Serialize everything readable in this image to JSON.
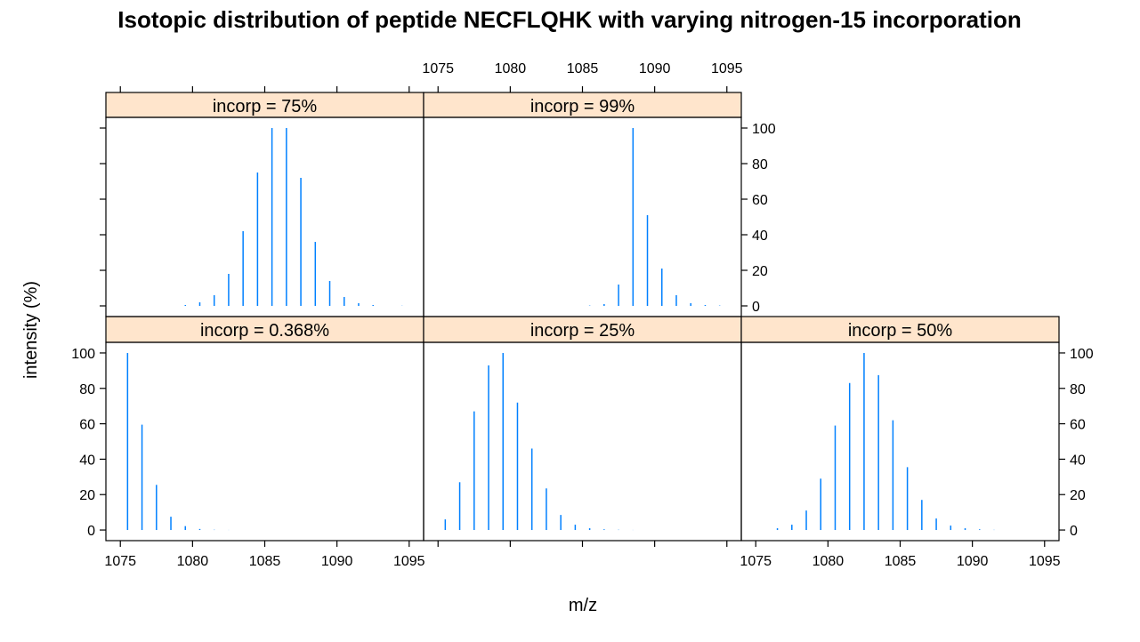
{
  "chart_data": {
    "type": "bar",
    "title": "Isotopic distribution of peptide NECFLQHK with varying nitrogen-15 incorporation",
    "xlabel": "m/z",
    "ylabel": "intensity (%)",
    "xlim": [
      1074,
      1096
    ],
    "ylim": [
      -6,
      106
    ],
    "x_ticks": [
      1075,
      1080,
      1085,
      1090,
      1095
    ],
    "y_ticks": [
      0,
      20,
      40,
      60,
      80,
      100
    ],
    "colors": {
      "bar": "#0080ff",
      "strip": "#ffe5cc",
      "axis": "#000000"
    },
    "panels": [
      {
        "label": "incorp = 0.368%",
        "x": [
          1075.5,
          1076.5,
          1077.5,
          1078.5,
          1079.5,
          1080.5,
          1081.5,
          1082.5
        ],
        "y": [
          100,
          59.5,
          25.5,
          7.5,
          2.2,
          0.6,
          0.15,
          0.05
        ]
      },
      {
        "label": "incorp = 25%",
        "x": [
          1075.5,
          1076.5,
          1077.5,
          1078.5,
          1079.5,
          1080.5,
          1081.5,
          1082.5,
          1083.5,
          1084.5,
          1085.5,
          1086.5,
          1087.5,
          1088.5
        ],
        "y": [
          6,
          27,
          67,
          93,
          100,
          72,
          46,
          23.5,
          8.5,
          3,
          1,
          0.4,
          0.15,
          0.05
        ]
      },
      {
        "label": "incorp = 50%",
        "x": [
          1076.5,
          1077.5,
          1078.5,
          1079.5,
          1080.5,
          1081.5,
          1082.5,
          1083.5,
          1084.5,
          1085.5,
          1086.5,
          1087.5,
          1088.5,
          1089.5,
          1090.5,
          1091.5
        ],
        "y": [
          1,
          3,
          11,
          29,
          59,
          83,
          100,
          87.5,
          62,
          35.5,
          17,
          6.5,
          2.5,
          1,
          0.4,
          0.1
        ]
      },
      {
        "label": "incorp = 75%",
        "x": [
          1079.5,
          1080.5,
          1081.5,
          1082.5,
          1083.5,
          1084.5,
          1085.5,
          1086.5,
          1087.5,
          1088.5,
          1089.5,
          1090.5,
          1091.5,
          1092.5,
          1094.5
        ],
        "y": [
          0.5,
          2,
          6,
          18,
          42,
          75,
          100,
          100,
          72,
          36,
          14,
          5,
          1.5,
          0.5,
          0.1
        ]
      },
      {
        "label": "incorp = 99%",
        "x": [
          1085.5,
          1086.5,
          1087.5,
          1088.5,
          1089.5,
          1090.5,
          1091.5,
          1092.5,
          1093.5,
          1094.5
        ],
        "y": [
          0.2,
          1,
          12,
          100,
          51,
          21,
          6,
          1.5,
          0.5,
          0.2
        ]
      }
    ]
  }
}
